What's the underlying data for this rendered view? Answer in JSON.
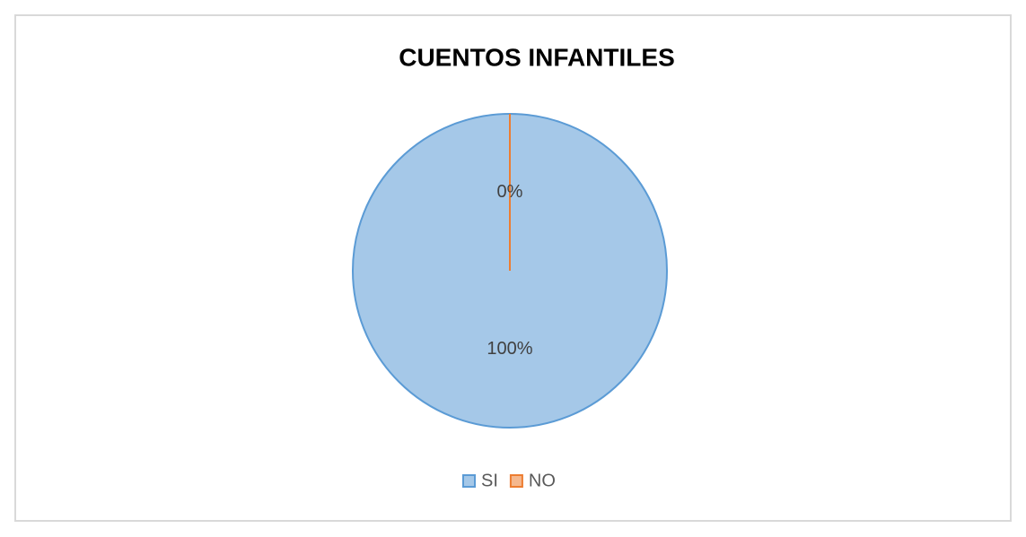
{
  "chart_data": {
    "type": "pie",
    "title": "CUENTOS INFANTILES",
    "categories": [
      "SI",
      "NO"
    ],
    "values": [
      100,
      0
    ],
    "value_labels": [
      "100%",
      "0%"
    ],
    "colors": [
      "#5b9bd5",
      "#ed7d31"
    ],
    "legend": "bottom"
  }
}
